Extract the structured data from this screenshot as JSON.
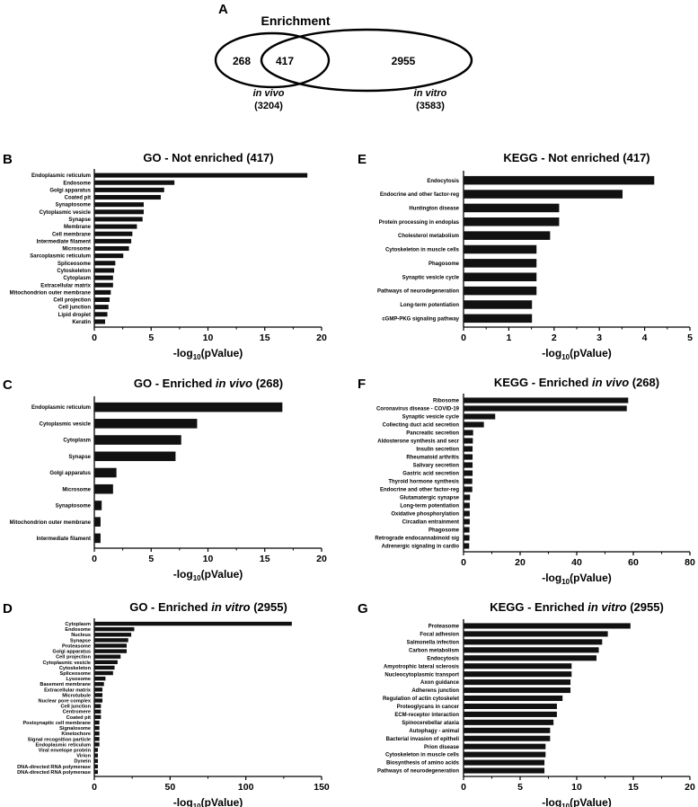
{
  "venn": {
    "panel_label": "A",
    "title": "Enrichment",
    "left_only": "268",
    "overlap": "417",
    "right_only": "2955",
    "left_name": "in vivo",
    "left_total": "(3204)",
    "right_name": "in vitro",
    "right_total": "(3583)"
  },
  "xlabel": {
    "pre": "-log",
    "sub": "10",
    "post": "(pValue)"
  },
  "chart_data": [
    {
      "id": "B",
      "panel_label": "B",
      "type": "bar",
      "orientation": "horizontal",
      "title": {
        "pre": "GO - Not enriched (417)",
        "ital": "",
        "post": ""
      },
      "xlabel": "-log10(pValue)",
      "xlim": [
        0,
        20
      ],
      "xticks": [
        0,
        5,
        10,
        15,
        20
      ],
      "categories": [
        "Endoplasmic reticulum",
        "Endosome",
        "Golgi apparatus",
        "Coated pit",
        "Synaptosome",
        "Cytoplasmic vesicle",
        "Synapse",
        "Membrane",
        "Cell membrane",
        "Intermediate filament",
        "Microsome",
        "Sarcoplasmic reticulum",
        "Spliceosome",
        "Cytoskeleton",
        "Cytoplasm",
        "Extracellular matrix",
        "Mitochondrion outer membrane",
        "Cell projection",
        "Cell junction",
        "Lipid droplet",
        "Keratin"
      ],
      "values": [
        18.7,
        7.0,
        6.1,
        5.8,
        4.3,
        4.3,
        4.2,
        3.7,
        3.3,
        3.2,
        3.0,
        2.5,
        1.8,
        1.7,
        1.6,
        1.6,
        1.4,
        1.3,
        1.2,
        1.1,
        0.9
      ]
    },
    {
      "id": "C",
      "panel_label": "C",
      "type": "bar",
      "orientation": "horizontal",
      "title": {
        "pre": "GO - Enriched ",
        "ital": "in vivo",
        "post": " (268)"
      },
      "xlabel": "-log10(pValue)",
      "xlim": [
        0,
        20
      ],
      "xticks": [
        0,
        5,
        10,
        15,
        20
      ],
      "categories": [
        "Endoplasmic reticulum",
        "Cytoplasmic vesicle",
        "Cytoplasm",
        "Synapse",
        "Golgi apparatus",
        "Microsome",
        "Synaptosome",
        "Mitochondrion outer membrane",
        "Intermediate filament"
      ],
      "values": [
        16.5,
        9.0,
        7.6,
        7.1,
        1.9,
        1.6,
        0.6,
        0.5,
        0.5
      ]
    },
    {
      "id": "D",
      "panel_label": "D",
      "type": "bar",
      "orientation": "horizontal",
      "title": {
        "pre": "GO - Enriched ",
        "ital": "in vitro",
        "post": " (2955)"
      },
      "xlabel": "-log10(pValue)",
      "xlim": [
        0,
        150
      ],
      "xticks": [
        0,
        50,
        100,
        150
      ],
      "categories": [
        "Cytoplasm",
        "Endosome",
        "Nucleus",
        "Synapse",
        "Proteasome",
        "Golgi apparatus",
        "Cell projection",
        "Cytoplasmic vesicle",
        "Cytoskeleton",
        "Spliceosome",
        "Lysosome",
        "Basement membrane",
        "Extracellular matrix",
        "Microtubule",
        "Nuclear pore complex",
        "Cell junction",
        "Centromere",
        "Coated pit",
        "Postsynaptic cell membrane",
        "Signalosome",
        "Kinetochore",
        "Signal recognition particle",
        "Endoplasmic reticulum",
        "Viral envelope protein",
        "Virion",
        "Dynein",
        "DNA-directed RNA polymerase",
        "DNA-directed RNA polymerase"
      ],
      "values": [
        130,
        26,
        24,
        22,
        21,
        21,
        17,
        15,
        13,
        12,
        7,
        6,
        5,
        5,
        5,
        4,
        4,
        4,
        3,
        3,
        3,
        3,
        3,
        2,
        2,
        2,
        2,
        2
      ]
    },
    {
      "id": "E",
      "panel_label": "E",
      "type": "bar",
      "orientation": "horizontal",
      "title": {
        "pre": "KEGG - Not enriched (417)",
        "ital": "",
        "post": ""
      },
      "xlabel": "-log10(pValue)",
      "xlim": [
        0,
        5
      ],
      "xticks": [
        0,
        1,
        2,
        3,
        4,
        5
      ],
      "categories": [
        "Endocytosis",
        "Endocrine and other factor-reg",
        "Huntington disease",
        "Protein processing in endoplas",
        "Cholesterol metabolism",
        "Cytoskeleton in muscle cells",
        "Phagosome",
        "Synaptic vesicle cycle",
        "Pathways of neurodegeneration",
        "Long-term potentiation",
        "cGMP-PKG signaling pathway"
      ],
      "values": [
        4.2,
        3.5,
        2.1,
        2.1,
        1.9,
        1.6,
        1.6,
        1.6,
        1.6,
        1.5,
        1.5
      ]
    },
    {
      "id": "F",
      "panel_label": "F",
      "type": "bar",
      "orientation": "horizontal",
      "title": {
        "pre": "KEGG - Enriched ",
        "ital": "in vivo",
        "post": " (268)"
      },
      "xlabel": "-log10(pValue)",
      "xlim": [
        0,
        80
      ],
      "xticks": [
        0,
        20,
        40,
        60,
        80
      ],
      "categories": [
        "Ribosome",
        "Coronavirus disease - COVID-19",
        "Synaptic vesicle cycle",
        "Collecting duct acid secretion",
        "Pancreatic secretion",
        "Aldosterone synthesis and secr",
        "Insulin secretion",
        "Rheumatoid arthritis",
        "Salivary secretion",
        "Gastric acid secretion",
        "Thyroid hormone synthesis",
        "Endocrine and other factor-reg",
        "Glutamatergic synapse",
        "Long-term potentiation",
        "Oxidative phosphorylation",
        "Circadian entrainment",
        "Phagosome",
        "Retrograde endocannabinoid sig",
        "Adrenergic signaling in cardio"
      ],
      "values": [
        58,
        57.5,
        11,
        7,
        3.2,
        3.1,
        3.0,
        3.0,
        3.0,
        3.0,
        2.9,
        2.9,
        2.1,
        2.0,
        2.0,
        2.0,
        1.9,
        1.9,
        1.8
      ]
    },
    {
      "id": "G",
      "panel_label": "G",
      "type": "bar",
      "orientation": "horizontal",
      "title": {
        "pre": "KEGG - Enriched ",
        "ital": "in vitro",
        "post": " (2955)"
      },
      "xlabel": "-log10(pValue)",
      "xlim": [
        0,
        20
      ],
      "xticks": [
        0,
        5,
        10,
        15,
        20
      ],
      "categories": [
        "Proteasome",
        "Focal adhesion",
        "Salmonella infection",
        "Carbon metabolism",
        "Endocytosis",
        "Amyotrophic lateral sclerosis",
        "Nucleocytoplasmic transport",
        "Axon guidance",
        "Adherens junction",
        "Regulation of actin cytoskelet",
        "Proteoglycans in cancer",
        "ECM-receptor interaction",
        "Spinocerebellar ataxia",
        "Autophagy - animal",
        "Bacterial invasion of epitheli",
        "Prion disease",
        "Cytoskeleton in muscle cells",
        "Biosynthesis of amino acids",
        "Pathways of neurodegeneration"
      ],
      "values": [
        14.7,
        12.7,
        12.2,
        11.9,
        11.7,
        9.5,
        9.5,
        9.4,
        9.4,
        8.7,
        8.2,
        8.2,
        7.9,
        7.6,
        7.6,
        7.2,
        7.2,
        7.1,
        7.1
      ]
    }
  ]
}
